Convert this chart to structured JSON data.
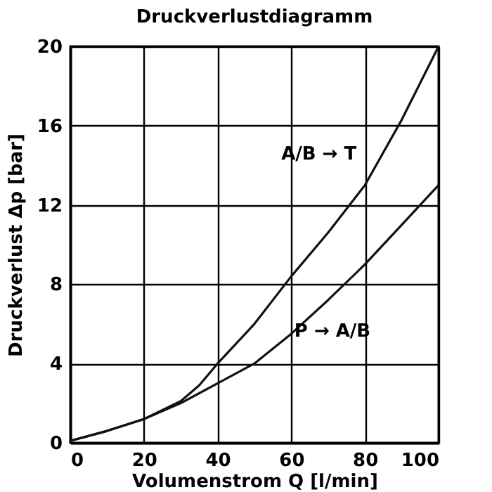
{
  "chart_data": {
    "type": "line",
    "title": "Druckverlustdiagramm",
    "xlabel": "Volumenstrom Q [l/min]",
    "ylabel": "Druckverlust Δp [bar]",
    "x": [
      0,
      10,
      20,
      30,
      35,
      40,
      50,
      60,
      70,
      80,
      90,
      100
    ],
    "series": [
      {
        "name": "A/B → T",
        "color": "#111111",
        "values": [
          0.1,
          0.6,
          1.2,
          2.1,
          2.9,
          4,
          6,
          8.4,
          10.6,
          13,
          16.3,
          20
        ]
      },
      {
        "name": "P → A/B",
        "color": "#111111",
        "values": [
          0.1,
          0.6,
          1.2,
          2,
          2.5,
          3,
          4,
          5.5,
          7.2,
          9,
          11,
          13
        ]
      }
    ],
    "xlim": [
      0,
      100
    ],
    "xticks": [
      0,
      20,
      40,
      60,
      80,
      100
    ],
    "ylim": [
      0,
      20
    ],
    "yticks": [
      0,
      4,
      8,
      12,
      16,
      20
    ],
    "grid": true,
    "line_style": "solid",
    "marker": "none"
  }
}
